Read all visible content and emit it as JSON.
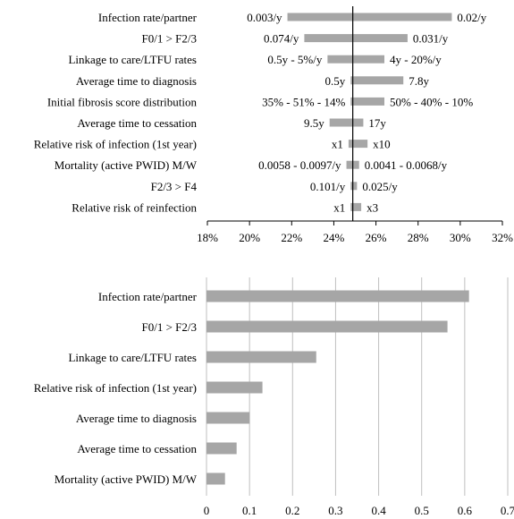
{
  "chart_data": [
    {
      "type": "bar",
      "orientation": "horizontal-tornado",
      "title": "",
      "xlabel": "",
      "ylabel": "",
      "baseline": 24.9,
      "xlim": [
        18,
        32
      ],
      "x_ticks": [
        "18%",
        "20%",
        "22%",
        "24%",
        "26%",
        "28%",
        "30%",
        "32%"
      ],
      "grid": false,
      "colors": {
        "bar": "#a6a6a6",
        "axis": "#000000"
      },
      "rows": [
        {
          "label": "Infection rate/partner",
          "low": 21.8,
          "high": 29.6,
          "left_label": "0.003/y",
          "right_label": "0.02/y"
        },
        {
          "label": "F0/1 > F2/3",
          "low": 22.6,
          "high": 27.5,
          "left_label": "0.074/y",
          "right_label": "0.031/y"
        },
        {
          "label": "Linkage to care/LTFU rates",
          "low": 23.7,
          "high": 26.4,
          "left_label": "0.5y - 5%/y",
          "right_label": "4y - 20%/y"
        },
        {
          "label": "Average time to diagnosis",
          "low": 24.8,
          "high": 27.3,
          "left_label": "0.5y",
          "right_label": "7.8y"
        },
        {
          "label": "Initial fibrosis score distribution",
          "low": 24.8,
          "high": 26.4,
          "left_label": "35% - 51% - 14%",
          "right_label": "50% - 40% - 10%"
        },
        {
          "label": "Average time to cessation",
          "low": 23.8,
          "high": 25.4,
          "left_label": "9.5y",
          "right_label": "17y"
        },
        {
          "label": "Relative risk of infection (1st year)",
          "low": 24.7,
          "high": 25.6,
          "left_label": "x1",
          "right_label": "x10"
        },
        {
          "label": "Mortality (active PWID) M/W",
          "low": 24.6,
          "high": 25.2,
          "left_label": "0.0058 - 0.0097/y",
          "right_label": "0.0041 - 0.0068/y"
        },
        {
          "label": "F2/3 > F4",
          "low": 24.8,
          "high": 25.1,
          "left_label": "0.101/y",
          "right_label": "0.025/y"
        },
        {
          "label": "Relative risk of reinfection",
          "low": 24.8,
          "high": 25.3,
          "left_label": "x1",
          "right_label": "x3"
        }
      ]
    },
    {
      "type": "bar",
      "orientation": "horizontal",
      "title": "",
      "xlabel": "",
      "ylabel": "",
      "xlim": [
        0,
        0.7
      ],
      "x_ticks": [
        "0",
        "0.1",
        "0.2",
        "0.3",
        "0.4",
        "0.5",
        "0.6",
        "0.7"
      ],
      "grid": true,
      "colors": {
        "bar": "#a6a6a6",
        "grid": "#bfbfbf"
      },
      "categories": [
        "Infection rate/partner",
        "F0/1 > F2/3",
        "Linkage to care/LTFU rates",
        "Relative risk of infection (1st year)",
        "Average time to diagnosis",
        "Average time to cessation",
        "Mortality (active PWID) M/W"
      ],
      "values": [
        0.61,
        0.56,
        0.255,
        0.13,
        0.1,
        0.07,
        0.043
      ]
    }
  ]
}
